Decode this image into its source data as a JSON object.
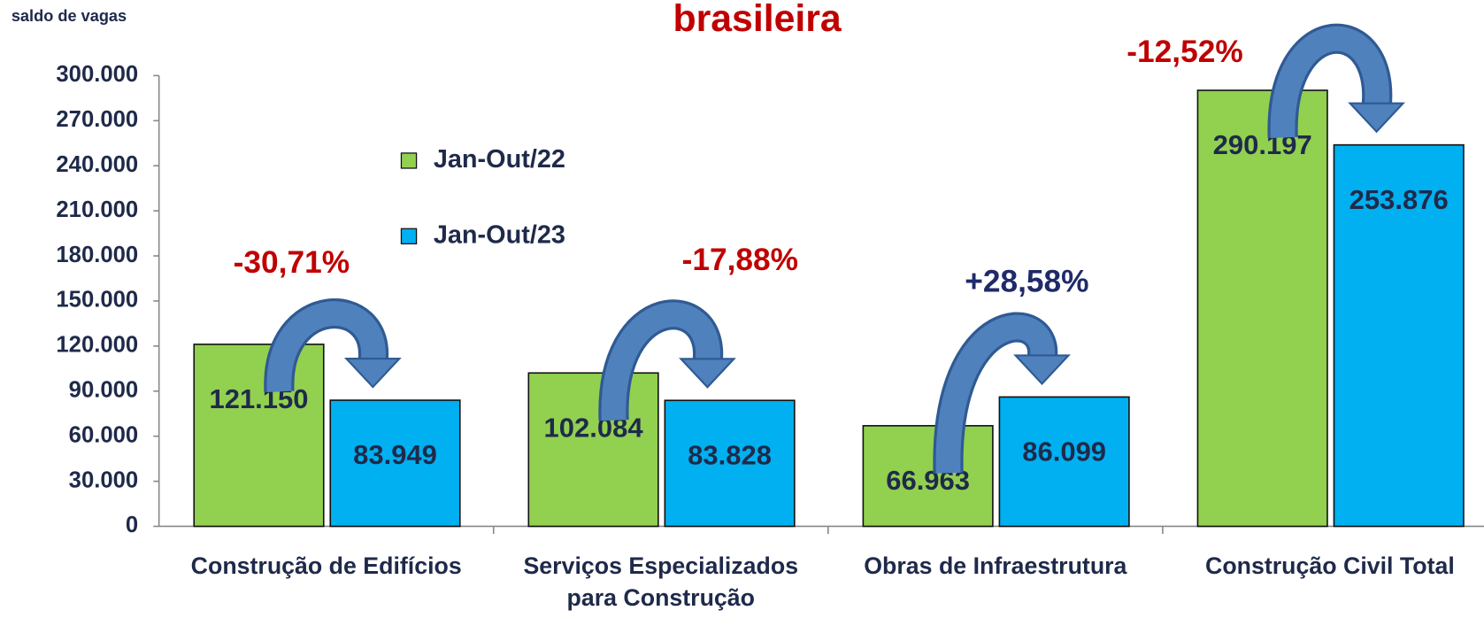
{
  "chart_data": {
    "type": "bar",
    "title": "brasileira",
    "y_label": "saldo de vagas",
    "categories": [
      "Construção de Edifícios",
      "Serviços Especializados para Construção",
      "Obras de Infraestrutura",
      "Construção Civil Total"
    ],
    "series": [
      {
        "name": "Jan-Out/22",
        "color": "#92d050",
        "values": [
          121150,
          102084,
          66963,
          290197
        ],
        "value_labels": [
          "121.150",
          "102.084",
          "66.963",
          "290.197"
        ]
      },
      {
        "name": "Jan-Out/23",
        "color": "#00b0f0",
        "values": [
          83949,
          83828,
          86099,
          253876
        ],
        "value_labels": [
          "83.949",
          "83.828",
          "86.099",
          "253.876"
        ]
      }
    ],
    "annotations": [
      {
        "text": "-30,71%",
        "color": "#c00000"
      },
      {
        "text": "-17,88%",
        "color": "#c00000"
      },
      {
        "text": "+28,58%",
        "color": "#1f2a6a"
      },
      {
        "text": "-12,52%",
        "color": "#c00000"
      }
    ],
    "ylim": [
      0,
      300000
    ],
    "yticks": [
      0,
      {
        "value": 30000,
        "label": "30.000"
      },
      {
        "value": 60000,
        "label": "60.000"
      },
      {
        "value": 90000,
        "label": "90.000"
      },
      {
        "value": 120000,
        "label": "120.000"
      },
      {
        "value": 150000,
        "label": "150.000"
      },
      {
        "value": 180000,
        "label": "180.000"
      },
      {
        "value": 210000,
        "label": "210.000"
      },
      {
        "value": 240000,
        "label": "240.000"
      },
      {
        "value": 270000,
        "label": "270.000"
      },
      {
        "value": 300000,
        "label": "300.000"
      }
    ],
    "grid": false
  }
}
